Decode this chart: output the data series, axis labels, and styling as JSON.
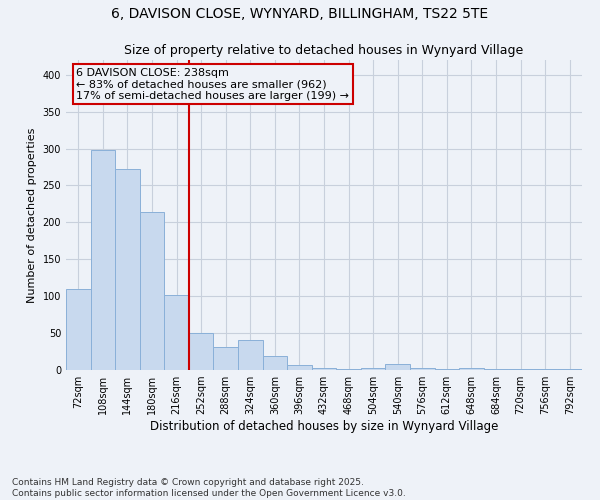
{
  "title": "6, DAVISON CLOSE, WYNYARD, BILLINGHAM, TS22 5TE",
  "subtitle": "Size of property relative to detached houses in Wynyard Village",
  "xlabel": "Distribution of detached houses by size in Wynyard Village",
  "ylabel": "Number of detached properties",
  "bar_color": "#c8d9ee",
  "bar_edge_color": "#8ab0d8",
  "categories": [
    "72sqm",
    "108sqm",
    "144sqm",
    "180sqm",
    "216sqm",
    "252sqm",
    "288sqm",
    "324sqm",
    "360sqm",
    "396sqm",
    "432sqm",
    "468sqm",
    "504sqm",
    "540sqm",
    "576sqm",
    "612sqm",
    "648sqm",
    "684sqm",
    "720sqm",
    "756sqm",
    "792sqm"
  ],
  "values": [
    110,
    298,
    272,
    214,
    101,
    50,
    31,
    40,
    19,
    7,
    3,
    2,
    3,
    8,
    3,
    2,
    3,
    2,
    2,
    1,
    2
  ],
  "vline_color": "#cc0000",
  "annotation_text": "6 DAVISON CLOSE: 238sqm\n← 83% of detached houses are smaller (962)\n17% of semi-detached houses are larger (199) →",
  "annotation_box_color": "#cc0000",
  "ylim": [
    0,
    420
  ],
  "yticks": [
    0,
    50,
    100,
    150,
    200,
    250,
    300,
    350,
    400
  ],
  "grid_color": "#c8d0dc",
  "bg_color": "#eef2f8",
  "footer_line1": "Contains HM Land Registry data © Crown copyright and database right 2025.",
  "footer_line2": "Contains public sector information licensed under the Open Government Licence v3.0.",
  "title_fontsize": 10,
  "subtitle_fontsize": 9,
  "tick_fontsize": 7,
  "xlabel_fontsize": 8.5,
  "ylabel_fontsize": 8,
  "annotation_fontsize": 8,
  "footer_fontsize": 6.5
}
